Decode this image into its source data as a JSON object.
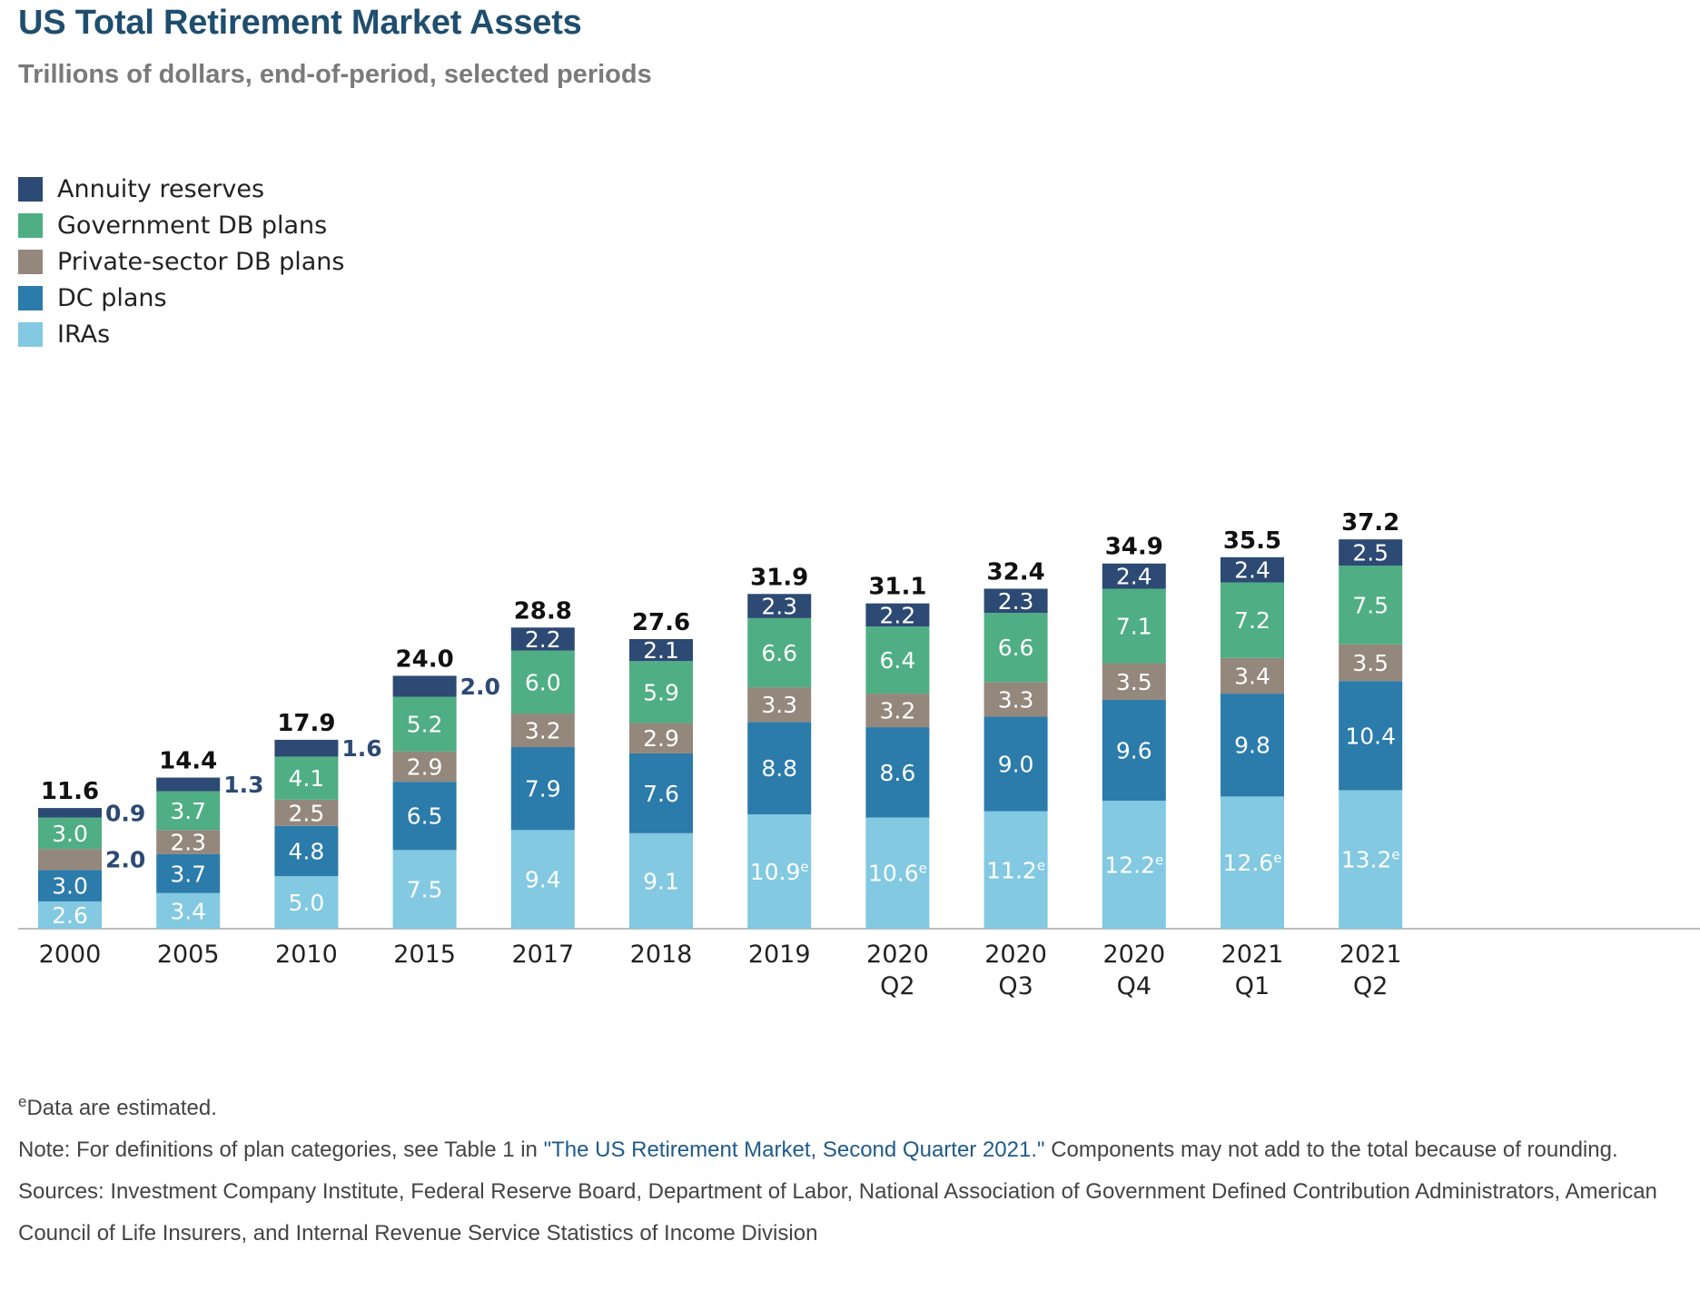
{
  "header": {
    "title": "US Total Retirement Market Assets",
    "subtitle": "Trillions of dollars, end-of-period, selected periods"
  },
  "legend": [
    {
      "label": "Annuity reserves",
      "color": "#2c4a73"
    },
    {
      "label": "Government DB plans",
      "color": "#4fae83"
    },
    {
      "label": "Private-sector DB plans",
      "color": "#94877c"
    },
    {
      "label": "DC plans",
      "color": "#2b7bab"
    },
    {
      "label": "IRAs",
      "color": "#82c9e1"
    }
  ],
  "chart_data": {
    "type": "bar",
    "stacked": true,
    "title": "US Total Retirement Market Assets",
    "subtitle": "Trillions of dollars, end-of-period, selected periods",
    "legend_position": "top-left",
    "grid": false,
    "categories": [
      [
        "2000"
      ],
      [
        "2005"
      ],
      [
        "2010"
      ],
      [
        "2015"
      ],
      [
        "2017"
      ],
      [
        "2018"
      ],
      [
        "2019"
      ],
      [
        "2020",
        "Q2"
      ],
      [
        "2020",
        "Q3"
      ],
      [
        "2020",
        "Q4"
      ],
      [
        "2021",
        "Q1"
      ],
      [
        "2021",
        "Q2"
      ]
    ],
    "series": [
      {
        "name": "IRAs",
        "color": "#82c9e1",
        "values": [
          2.6,
          3.4,
          5.0,
          7.5,
          9.4,
          9.1,
          10.9,
          10.6,
          11.2,
          12.2,
          12.6,
          13.2
        ],
        "labels": [
          "2.6",
          "3.4",
          "5.0",
          "7.5",
          "9.4",
          "9.1",
          "10.9",
          "10.6",
          "11.2",
          "12.2",
          "12.6",
          "13.2"
        ],
        "estimated": [
          false,
          false,
          false,
          false,
          false,
          false,
          true,
          true,
          true,
          true,
          true,
          true
        ]
      },
      {
        "name": "DC plans",
        "color": "#2b7bab",
        "values": [
          3.0,
          3.7,
          4.8,
          6.5,
          7.9,
          7.6,
          8.8,
          8.6,
          9.0,
          9.6,
          9.8,
          10.4
        ],
        "labels": [
          "3.0",
          "3.7",
          "4.8",
          "6.5",
          "7.9",
          "7.6",
          "8.8",
          "8.6",
          "9.0",
          "9.6",
          "9.8",
          "10.4"
        ]
      },
      {
        "name": "Private-sector DB plans",
        "color": "#94877c",
        "values": [
          2.0,
          2.3,
          2.5,
          2.9,
          3.2,
          2.9,
          3.3,
          3.2,
          3.3,
          3.5,
          3.4,
          3.5
        ],
        "labels": [
          "2.0",
          "2.3",
          "2.5",
          "2.9",
          "3.2",
          "2.9",
          "3.3",
          "3.2",
          "3.3",
          "3.5",
          "3.4",
          "3.5"
        ]
      },
      {
        "name": "Government DB plans",
        "color": "#4fae83",
        "values": [
          3.0,
          3.7,
          4.1,
          5.2,
          6.0,
          5.9,
          6.6,
          6.4,
          6.6,
          7.1,
          7.2,
          7.5
        ],
        "labels": [
          "3.0",
          "3.7",
          "4.1",
          "5.2",
          "6.0",
          "5.9",
          "6.6",
          "6.4",
          "6.6",
          "7.1",
          "7.2",
          "7.5"
        ]
      },
      {
        "name": "Annuity reserves",
        "color": "#2c4a73",
        "values": [
          0.9,
          1.3,
          1.6,
          2.0,
          2.2,
          2.1,
          2.3,
          2.2,
          2.3,
          2.4,
          2.4,
          2.5
        ],
        "labels": [
          "0.9",
          "1.3",
          "1.6",
          "2.0",
          "2.2",
          "2.1",
          "2.3",
          "2.2",
          "2.3",
          "2.4",
          "2.4",
          "2.5"
        ]
      }
    ],
    "totals": [
      11.6,
      14.4,
      17.9,
      24.0,
      28.8,
      27.6,
      31.9,
      31.1,
      32.4,
      34.9,
      35.5,
      37.2
    ],
    "total_labels": [
      "11.6",
      "14.4",
      "17.9",
      "24.0",
      "28.8",
      "27.6",
      "31.9",
      "31.1",
      "32.4",
      "34.9",
      "35.5",
      "37.2"
    ],
    "estimate_marker": "e",
    "ylim": [
      0,
      37.2
    ]
  },
  "notes": {
    "estimate_mark": "e",
    "estimate_text": "Data are estimated.",
    "note_prefix": "Note: For definitions of plan categories, see Table 1 in ",
    "note_link": "\"The US Retirement Market, Second Quarter 2021.\"",
    "note_suffix": " Components may not add to the total because of rounding.",
    "sources": "Sources: Investment Company Institute, Federal Reserve Board, Department of Labor, National Association of Government Defined Contribution Administrators, American Council of Life Insurers, and Internal Revenue Service Statistics of Income Division"
  }
}
